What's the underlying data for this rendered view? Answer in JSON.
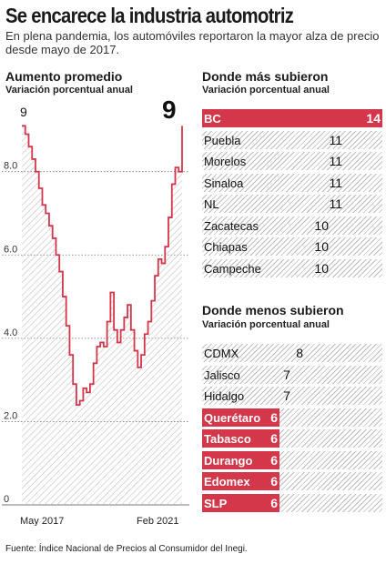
{
  "header": {
    "title": "Se encarece la industria automotriz",
    "subtitle": "En plena pandemia, los automóviles reportaron la mayor alza de precio desde mayo de 2017."
  },
  "colors": {
    "accent": "#d4364a",
    "hatch": "#bdbdbd",
    "line": "#d4364a"
  },
  "chart_data": [
    {
      "type": "line",
      "title": "Aumento promedio",
      "subtitle": "Variación porcentual anual",
      "x_tick_labels": [
        "May 2017",
        "Feb 2021"
      ],
      "y_tick_labels": [
        "0",
        "2.0",
        "4.0",
        "6.0",
        "8.0"
      ],
      "ylim": [
        0,
        9.5
      ],
      "grid": "dotted horizontal",
      "annotations": {
        "start": "9",
        "end": "9"
      },
      "series": [
        {
          "values": [
            9.1,
            8.9,
            8.6,
            8.3,
            8.0,
            7.6,
            7.2,
            7.0,
            6.7,
            6.4,
            6.0,
            5.6,
            5.0,
            4.3,
            3.6,
            2.9,
            2.4,
            2.5,
            2.8,
            2.7,
            2.9,
            3.4,
            3.8,
            3.9,
            3.8,
            4.4,
            5.1,
            4.2,
            3.9,
            4.2,
            4.5,
            4.8,
            4.2,
            3.7,
            3.3,
            3.6,
            4.1,
            4.4,
            4.9,
            5.5,
            5.9,
            5.8,
            6.2,
            6.9,
            7.7,
            8.1,
            8.0,
            9.1
          ]
        }
      ]
    },
    {
      "type": "bar",
      "title": "Donde más subieron",
      "subtitle": "Variación porcentual anual",
      "categories": [
        "BC",
        "Puebla",
        "Morelos",
        "Sinaloa",
        "NL",
        "Zacatecas",
        "Chiapas",
        "Campeche"
      ],
      "values": [
        14,
        11,
        11,
        11,
        11,
        10,
        10,
        10
      ],
      "highlighted": [
        true,
        false,
        false,
        false,
        false,
        false,
        false,
        false
      ],
      "xlim": [
        0,
        14
      ]
    },
    {
      "type": "bar",
      "title": "Donde menos subieron",
      "subtitle": "Variación porcentual anual",
      "categories": [
        "CDMX",
        "Jalisco",
        "Hidalgo",
        "Querétaro",
        "Tabasco",
        "Durango",
        "Edomex",
        "SLP"
      ],
      "values": [
        8,
        7,
        7,
        6,
        6,
        6,
        6,
        6
      ],
      "highlighted": [
        false,
        false,
        false,
        true,
        true,
        true,
        true,
        true
      ],
      "xlim": [
        0,
        14
      ]
    }
  ],
  "footer": {
    "source": "Fuente: Índice Nacional de Precios al Consumidor del Inegi."
  }
}
